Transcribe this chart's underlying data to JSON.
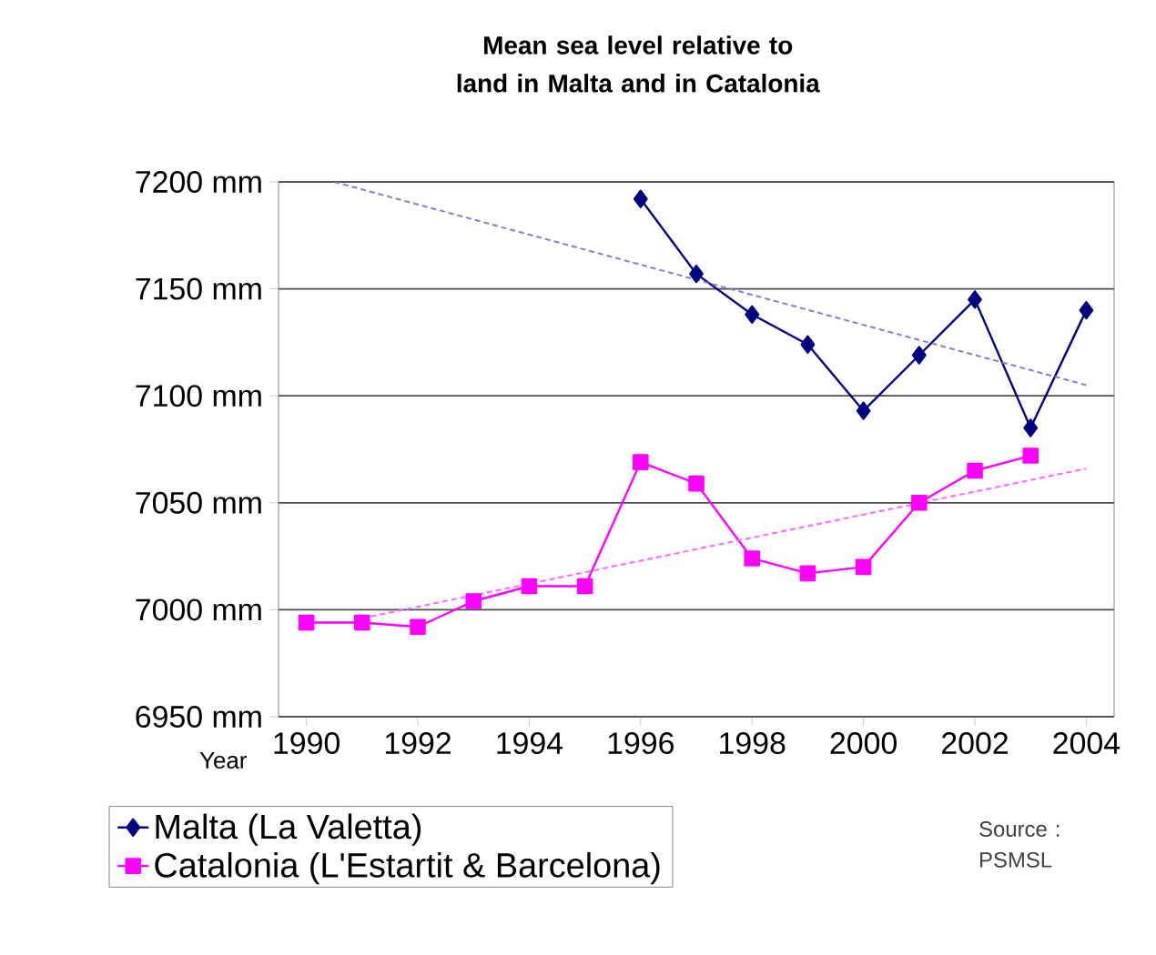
{
  "chart_data": {
    "type": "line",
    "title": "Mean sea level relative to land in Malta and in Catalonia",
    "xlabel": "Year",
    "xlim": [
      1989.5,
      2004.5
    ],
    "xticks": [
      1990,
      1992,
      1994,
      1996,
      1998,
      2000,
      2002,
      2004
    ],
    "ylim": [
      6950,
      7200
    ],
    "yticks": [
      {
        "value": 6950,
        "label": "6950 mm"
      },
      {
        "value": 7000,
        "label": "7000 mm"
      },
      {
        "value": 7050,
        "label": "7050 mm"
      },
      {
        "value": 7100,
        "label": "7100 mm"
      },
      {
        "value": 7150,
        "label": "7150 mm"
      },
      {
        "value": 7200,
        "label": "7200 mm"
      }
    ],
    "grid": "y",
    "legend": "bottom left",
    "annotations": [
      "Source : PSMSL"
    ],
    "series": [
      {
        "name": "Malta (La Valetta)",
        "color": "#000080",
        "marker": "diamond",
        "line_style": "solid",
        "x": [
          1996,
          1997,
          1998,
          1999,
          2000,
          2001,
          2002,
          2003,
          2004
        ],
        "values": [
          7192,
          7157,
          7138,
          7124,
          7093,
          7119,
          7145,
          7085,
          7140
        ]
      },
      {
        "name": "Catalonia (L'Estartit & Barcelona)",
        "color": "#ff00ff",
        "marker": "square",
        "line_style": "solid",
        "x": [
          1990,
          1991,
          1992,
          1993,
          1994,
          1995,
          1996,
          1997,
          1998,
          1999,
          2000,
          2001,
          2002,
          2003
        ],
        "values": [
          6994,
          6994,
          6992,
          7004,
          7011,
          7011,
          7069,
          7059,
          7024,
          7017,
          7020,
          7050,
          7065,
          7072
        ]
      },
      {
        "type": "line",
        "color": "#8080c8",
        "marker": "none",
        "line_style": "dashed",
        "x": [
          1990.5,
          2004
        ],
        "values": [
          7200,
          7105
        ]
      },
      {
        "type": "line",
        "color": "#ff66ff",
        "marker": "none",
        "line_style": "dashed",
        "x": [
          1991,
          2004
        ],
        "values": [
          6996,
          7066
        ]
      }
    ]
  }
}
